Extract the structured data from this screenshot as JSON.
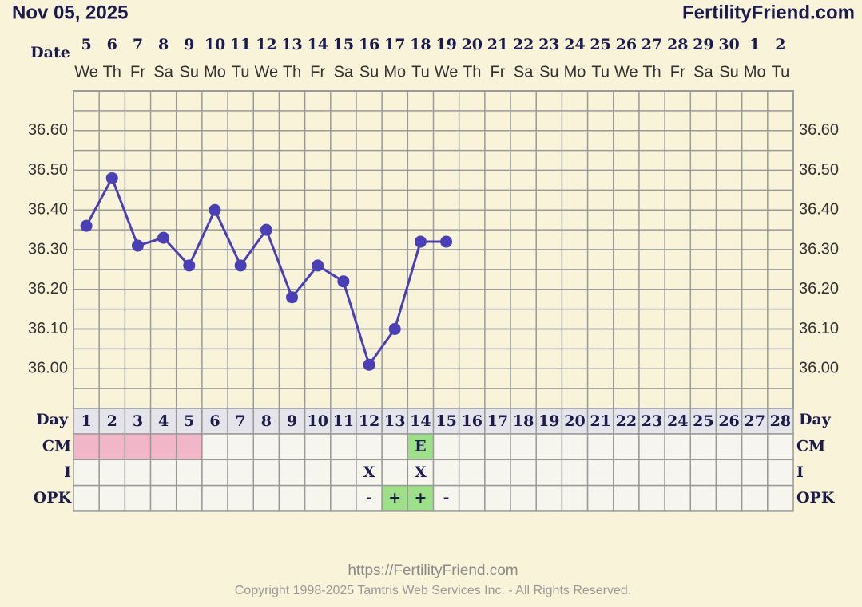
{
  "header": {
    "date": "Nov 05, 2025",
    "brand": "FertilityFriend.com"
  },
  "chart_data": {
    "type": "line",
    "date_label": "Date",
    "day_label": "Day",
    "dates": [
      "5",
      "6",
      "7",
      "8",
      "9",
      "10",
      "11",
      "12",
      "13",
      "14",
      "15",
      "16",
      "17",
      "18",
      "19",
      "20",
      "21",
      "22",
      "23",
      "24",
      "25",
      "26",
      "27",
      "28",
      "29",
      "30",
      "1",
      "2"
    ],
    "weekdays": [
      "We",
      "Th",
      "Fr",
      "Sa",
      "Su",
      "Mo",
      "Tu",
      "We",
      "Th",
      "Fr",
      "Sa",
      "Su",
      "Mo",
      "Tu",
      "We",
      "Th",
      "Fr",
      "Sa",
      "Su",
      "Mo",
      "Tu",
      "We",
      "Th",
      "Fr",
      "Sa",
      "Su",
      "Mo",
      "Tu"
    ],
    "categories": [
      "1",
      "2",
      "3",
      "4",
      "5",
      "6",
      "7",
      "8",
      "9",
      "10",
      "11",
      "12",
      "13",
      "14",
      "15",
      "16",
      "17",
      "18",
      "19",
      "20",
      "21",
      "22",
      "23",
      "24",
      "25",
      "26",
      "27",
      "28"
    ],
    "values": [
      36.36,
      36.48,
      36.31,
      36.33,
      36.26,
      36.4,
      36.26,
      36.35,
      36.18,
      36.26,
      36.22,
      36.01,
      36.1,
      36.32,
      36.32,
      null,
      null,
      null,
      null,
      null,
      null,
      null,
      null,
      null,
      null,
      null,
      null,
      null
    ],
    "color": "#4a3fb5",
    "ylim": [
      35.9,
      36.7
    ],
    "yticks": [
      {
        "value": 36.0,
        "label": "36.00"
      },
      {
        "value": 36.1,
        "label": "36.10"
      },
      {
        "value": 36.2,
        "label": "36.20"
      },
      {
        "value": 36.3,
        "label": "36.30"
      },
      {
        "value": 36.4,
        "label": "36.40"
      },
      {
        "value": 36.5,
        "label": "36.50"
      },
      {
        "value": 36.6,
        "label": "36.60"
      }
    ],
    "grid": true,
    "rows": [
      {
        "label": "CM",
        "values": [
          null,
          null,
          null,
          null,
          null,
          null,
          null,
          null,
          null,
          null,
          null,
          null,
          null,
          "E",
          null,
          null,
          null,
          null,
          null,
          null,
          null,
          null,
          null,
          null,
          null,
          null,
          null,
          null
        ],
        "colors": [
          "#f2b6c9",
          "#f2b6c9",
          "#f2b6c9",
          "#f2b6c9",
          "#f2b6c9",
          null,
          null,
          null,
          null,
          null,
          null,
          null,
          null,
          "#9ee08a",
          null,
          null,
          null,
          null,
          null,
          null,
          null,
          null,
          null,
          null,
          null,
          null,
          null,
          null
        ]
      },
      {
        "label": "I",
        "values": [
          null,
          null,
          null,
          null,
          null,
          null,
          null,
          null,
          null,
          null,
          null,
          "X",
          null,
          "X",
          null,
          null,
          null,
          null,
          null,
          null,
          null,
          null,
          null,
          null,
          null,
          null,
          null,
          null
        ],
        "colors": [
          null,
          null,
          null,
          null,
          null,
          null,
          null,
          null,
          null,
          null,
          null,
          null,
          null,
          null,
          null,
          null,
          null,
          null,
          null,
          null,
          null,
          null,
          null,
          null,
          null,
          null,
          null,
          null
        ]
      },
      {
        "label": "OPK",
        "values": [
          null,
          null,
          null,
          null,
          null,
          null,
          null,
          null,
          null,
          null,
          null,
          "-",
          "+",
          "+",
          "-",
          null,
          null,
          null,
          null,
          null,
          null,
          null,
          null,
          null,
          null,
          null,
          null,
          null
        ],
        "colors": [
          null,
          null,
          null,
          null,
          null,
          null,
          null,
          null,
          null,
          null,
          null,
          null,
          "#9ee08a",
          "#9ee08a",
          null,
          null,
          null,
          null,
          null,
          null,
          null,
          null,
          null,
          null,
          null,
          null,
          null,
          null
        ]
      }
    ]
  },
  "footer": {
    "url": "https://FertilityFriend.com",
    "copyright": "Copyright 1998-2025 Tamtris Web Services Inc. - All Rights Reserved."
  }
}
